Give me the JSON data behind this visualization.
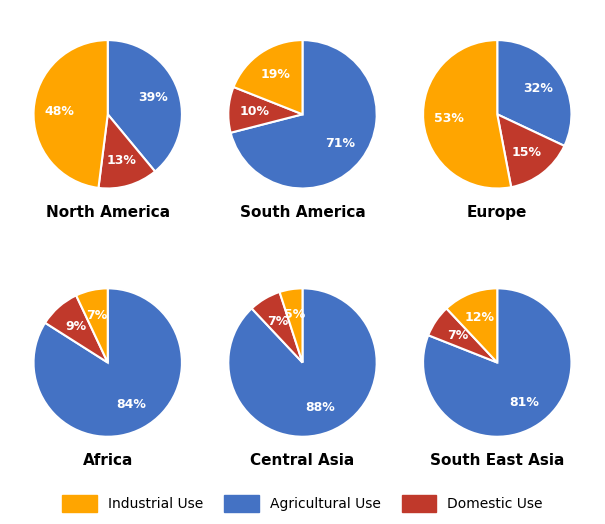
{
  "regions": [
    "North America",
    "South America",
    "Europe",
    "Africa",
    "Central Asia",
    "South East Asia"
  ],
  "data": {
    "North America": [
      39,
      13,
      48
    ],
    "South America": [
      71,
      10,
      19
    ],
    "Europe": [
      32,
      15,
      53
    ],
    "Africa": [
      84,
      9,
      7
    ],
    "Central Asia": [
      88,
      7,
      5
    ],
    "South East Asia": [
      81,
      7,
      12
    ]
  },
  "slice_order": [
    "Agricultural Use",
    "Domestic Use",
    "Industrial Use"
  ],
  "start_angles": {
    "North America": 90,
    "South America": 90,
    "Europe": 90,
    "Africa": 90,
    "Central Asia": 90,
    "South East Asia": 90
  },
  "colors": {
    "Agricultural Use": "#4472C4",
    "Domestic Use": "#C0392B",
    "Industrial Use": "#FFA500"
  },
  "legend_order": [
    "Industrial Use",
    "Agricultural Use",
    "Domestic Use"
  ],
  "legend_colors": {
    "Industrial Use": "#FFA500",
    "Agricultural Use": "#4472C4",
    "Domestic Use": "#C0392B"
  },
  "label_color": "white",
  "title_fontsize": 11,
  "label_fontsize": 9,
  "legend_fontsize": 10,
  "background_color": "#FFFFFF"
}
